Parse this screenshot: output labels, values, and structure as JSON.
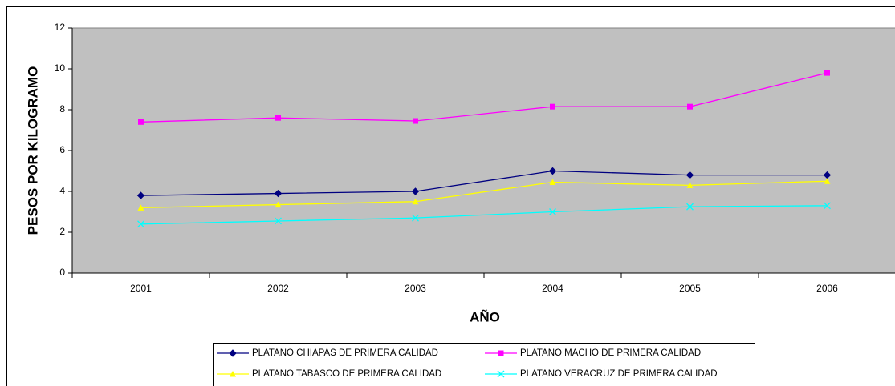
{
  "chart_data": {
    "type": "line",
    "x_label": "AÑO",
    "y_label": "PESOS POR KILOGRAMO",
    "categories": [
      "2001",
      "2002",
      "2003",
      "2004",
      "2005",
      "2006"
    ],
    "series": [
      {
        "name": "PLATANO CHIAPAS DE PRIMERA CALIDAD",
        "color": "#000080",
        "marker": "diamond",
        "values": [
          3.8,
          3.9,
          4.0,
          5.0,
          4.8,
          4.8
        ]
      },
      {
        "name": "PLATANO MACHO DE PRIMERA CALIDAD",
        "color": "#ff00ff",
        "marker": "square",
        "values": [
          7.4,
          7.6,
          7.45,
          8.15,
          8.15,
          9.8
        ]
      },
      {
        "name": "PLATANO TABASCO DE PRIMERA CALIDAD",
        "color": "#ffff00",
        "marker": "triangle",
        "values": [
          3.2,
          3.35,
          3.5,
          4.45,
          4.3,
          4.5
        ]
      },
      {
        "name": "PLATANO VERACRUZ DE PRIMERA CALIDAD",
        "color": "#00ffff",
        "marker": "x",
        "values": [
          2.4,
          2.55,
          2.7,
          3.0,
          3.25,
          3.3
        ]
      }
    ],
    "ylim": [
      0,
      12
    ],
    "yticks": [
      0,
      2,
      4,
      6,
      8,
      10,
      12
    ],
    "grid": false,
    "legend": "bottom"
  }
}
